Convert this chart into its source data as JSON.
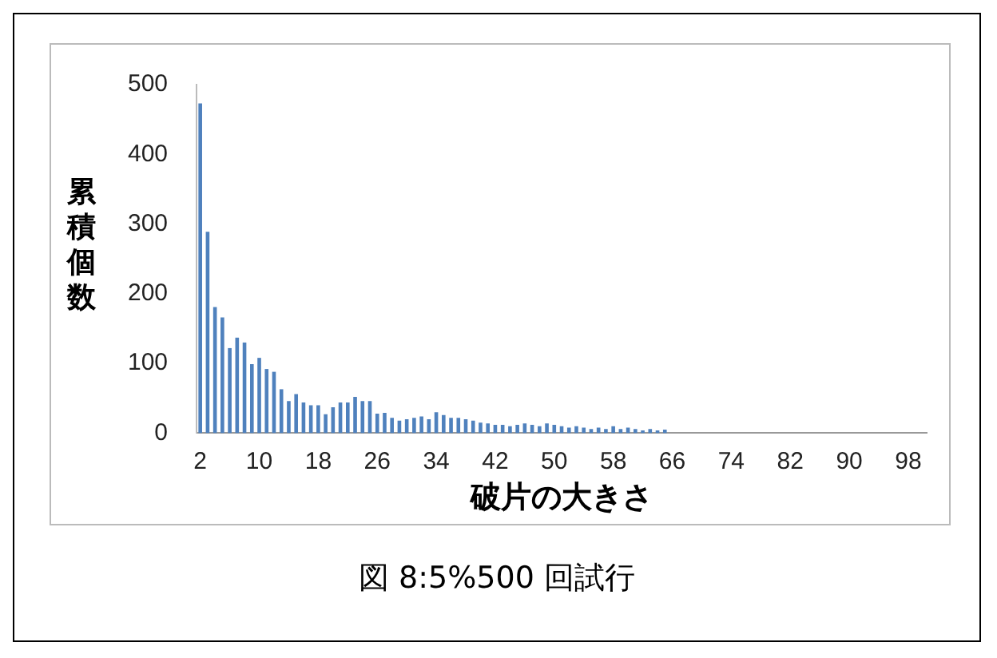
{
  "chart_data": {
    "type": "bar",
    "xlabel": "破片の大きさ",
    "ylabel": "累積個数",
    "annotations": [
      "図 8:5%500 回試行"
    ],
    "categories": [
      "2",
      null,
      null,
      null,
      null,
      null,
      null,
      null,
      "10",
      null,
      null,
      null,
      null,
      null,
      null,
      null,
      "18",
      null,
      null,
      null,
      null,
      null,
      null,
      null,
      "26",
      null,
      null,
      null,
      null,
      null,
      null,
      null,
      "34",
      null,
      null,
      null,
      null,
      null,
      null,
      null,
      "42",
      null,
      null,
      null,
      null,
      null,
      null,
      null,
      "50",
      null,
      null,
      null,
      null,
      null,
      null,
      null,
      "58",
      null,
      null,
      null,
      null,
      null,
      null,
      null,
      "66",
      null,
      null,
      null,
      null,
      null,
      null,
      null,
      "74",
      null,
      null,
      null,
      null,
      null,
      null,
      null,
      "82",
      null,
      null,
      null,
      null,
      null,
      null,
      null,
      "90",
      null,
      null,
      null,
      null,
      null,
      null,
      null,
      "98",
      null,
      null
    ],
    "values": [
      473,
      289,
      181,
      166,
      122,
      137,
      130,
      99,
      108,
      92,
      88,
      63,
      46,
      56,
      44,
      40,
      40,
      27,
      37,
      44,
      44,
      52,
      46,
      46,
      28,
      29,
      22,
      18,
      20,
      22,
      24,
      20,
      30,
      26,
      22,
      22,
      20,
      18,
      15,
      14,
      12,
      12,
      10,
      12,
      14,
      12,
      10,
      14,
      12,
      10,
      8,
      10,
      8,
      6,
      8,
      6,
      10,
      6,
      8,
      6,
      4,
      6,
      4,
      5,
      0,
      0,
      0,
      0,
      0,
      0,
      0,
      0,
      0,
      0,
      0,
      0,
      0,
      0,
      0,
      0,
      0,
      0,
      0,
      0,
      0,
      0,
      0,
      0,
      0,
      0,
      0,
      0,
      0,
      0,
      0,
      0,
      0,
      0,
      0
    ],
    "color": "#4f81bd",
    "ylim": [
      0,
      500
    ],
    "yticks": [
      0,
      100,
      200,
      300,
      400,
      500
    ],
    "grid": false,
    "legend": false
  }
}
